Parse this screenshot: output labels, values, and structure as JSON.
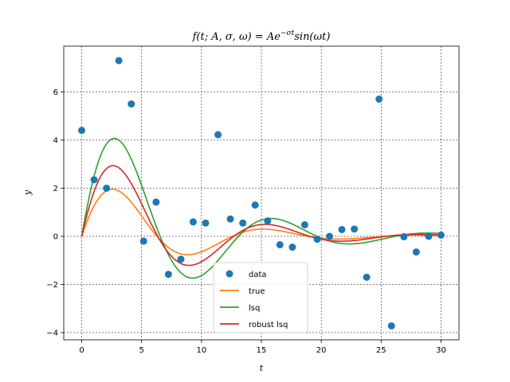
{
  "chart_data": {
    "type": "scatter",
    "title": "f(t; A, σ, ω) = Ae",
    "title_sup": "−σt",
    "title_tail": "sin(ωt)",
    "xlabel": "t",
    "ylabel": "y",
    "xlim": [
      -1.5,
      31.5
    ],
    "ylim": [
      -4.3,
      7.9
    ],
    "xticks": [
      0,
      5,
      10,
      15,
      20,
      25,
      30
    ],
    "yticks": [
      -4,
      -2,
      0,
      2,
      4,
      6
    ],
    "grid": true,
    "legend_position": "lower-center",
    "series": [
      {
        "name": "data",
        "kind": "scatter",
        "color": "#1f77b4",
        "x": [
          0.0,
          1.03,
          2.07,
          3.1,
          4.14,
          5.17,
          6.21,
          7.24,
          8.28,
          9.31,
          10.34,
          11.38,
          12.41,
          13.45,
          14.48,
          15.52,
          16.55,
          17.59,
          18.62,
          19.66,
          20.69,
          21.72,
          22.76,
          23.79,
          24.83,
          25.86,
          26.9,
          27.93,
          28.97,
          30.0
        ],
        "y": [
          4.4,
          2.35,
          2.0,
          7.3,
          5.5,
          -0.2,
          1.42,
          -1.58,
          -0.95,
          0.6,
          0.55,
          4.22,
          0.72,
          0.55,
          1.3,
          0.64,
          -0.35,
          -0.45,
          0.48,
          -0.12,
          0.0,
          0.28,
          0.3,
          -1.7,
          5.7,
          -3.72,
          -0.02,
          -0.65,
          0.0,
          0.05
        ]
      },
      {
        "name": "true",
        "kind": "line",
        "color": "#ff7f0e",
        "A": 3.0,
        "sigma": 0.15,
        "omega": 0.5
      },
      {
        "name": "lsq",
        "kind": "line",
        "color": "#2ca02c",
        "A": 6.0,
        "sigma": 0.13,
        "omega": 0.48
      },
      {
        "name": "robust lsq",
        "kind": "line",
        "color": "#d62728",
        "A": 4.4,
        "sigma": 0.14,
        "omega": 0.495
      }
    ]
  }
}
